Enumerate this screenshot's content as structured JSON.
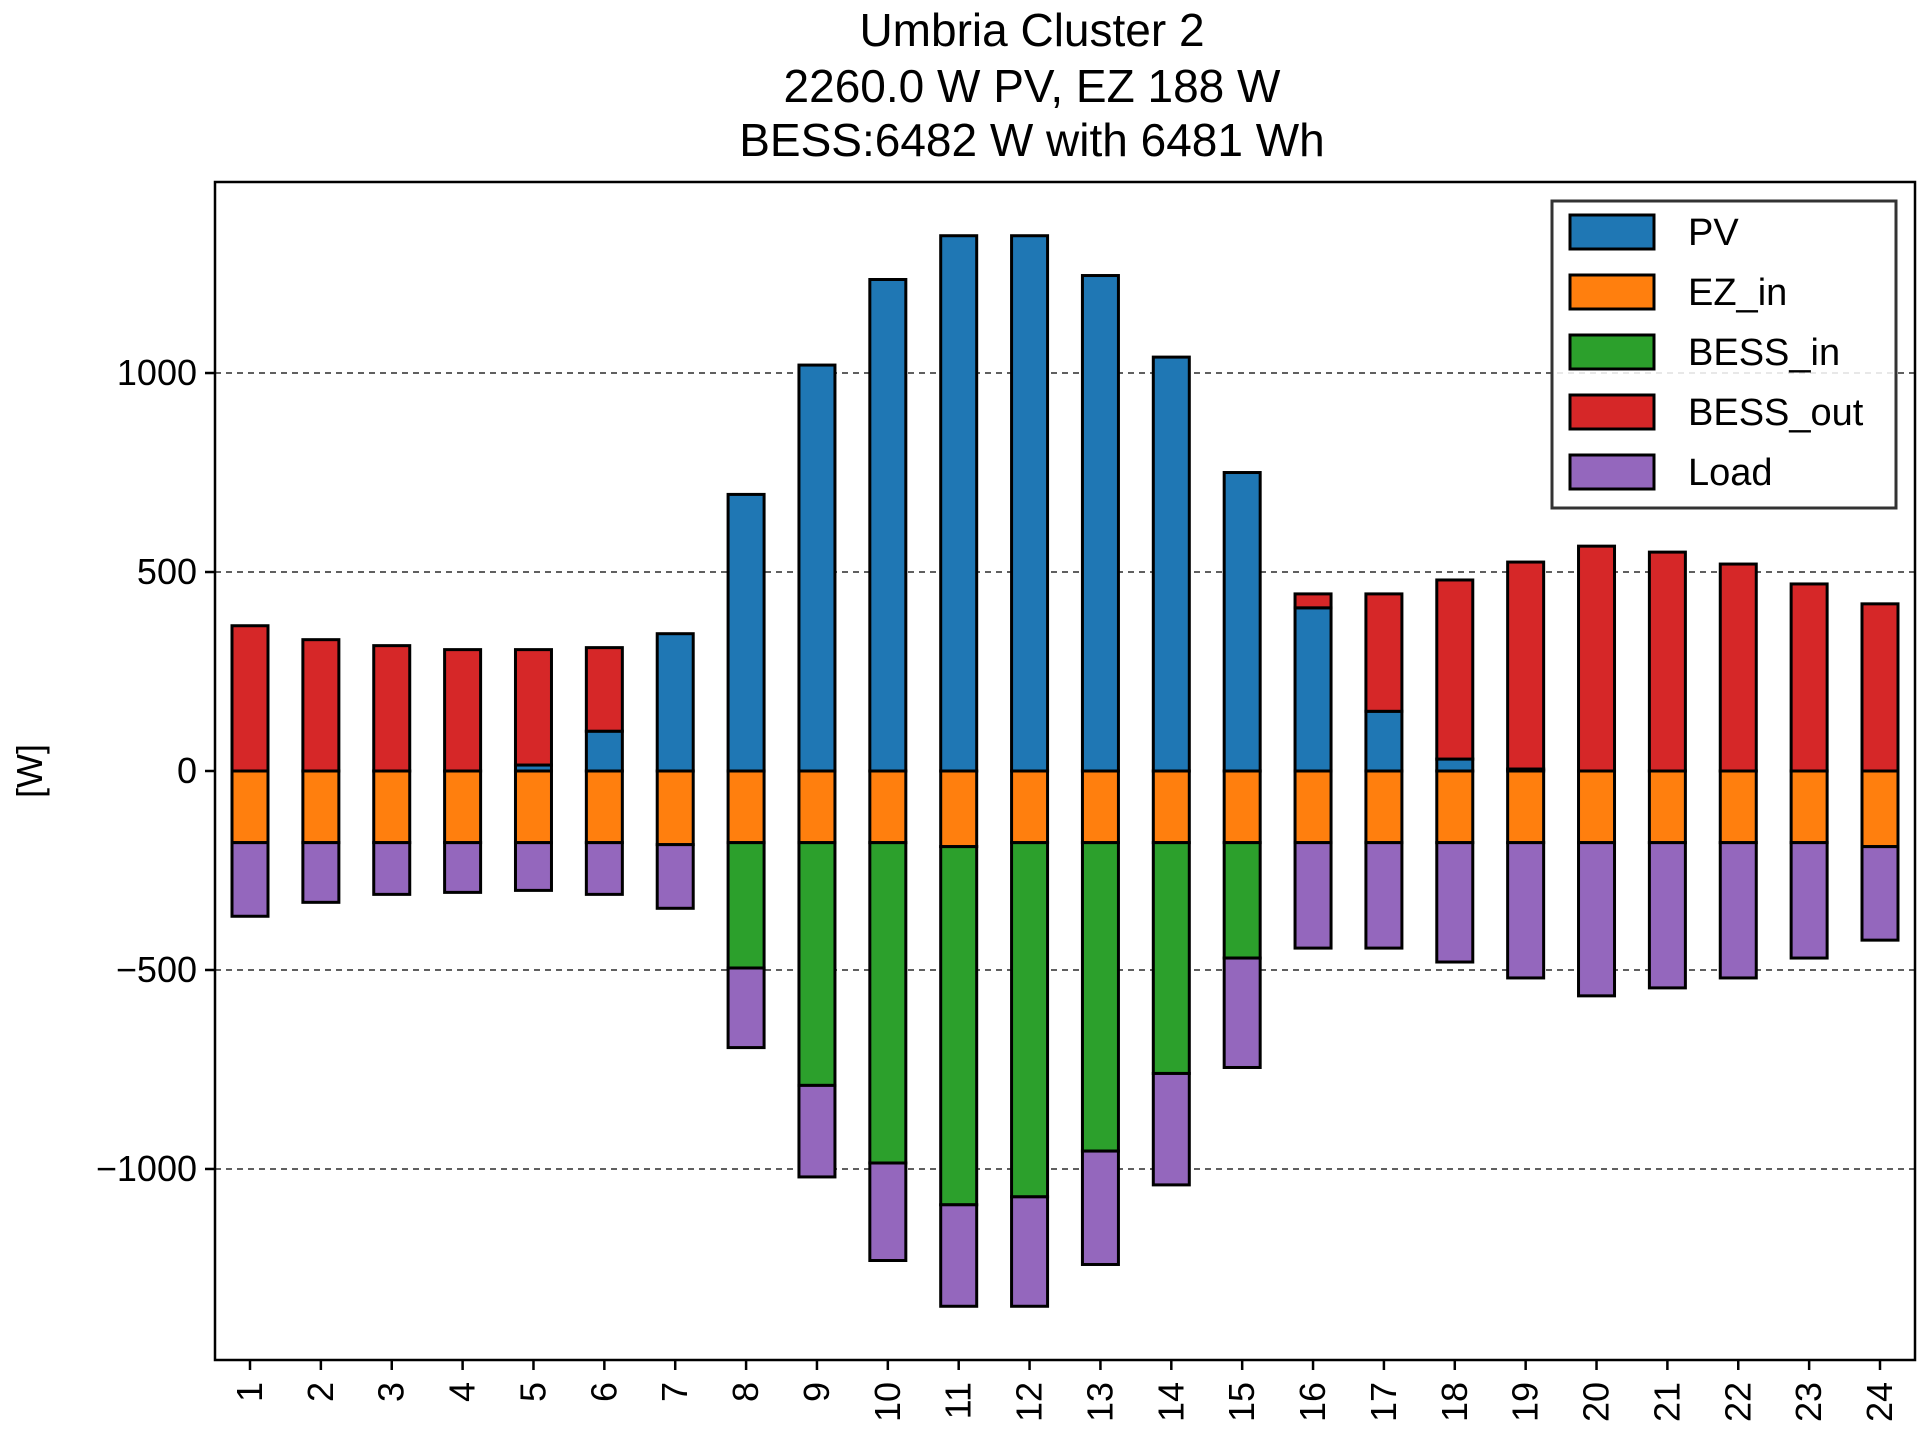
{
  "chart_data": {
    "type": "bar",
    "stacked": true,
    "title_lines": [
      "Umbria Cluster 2",
      "2260.0 W PV, EZ 188 W",
      "BESS:6482 W with 6481 Wh"
    ],
    "xlabel": "",
    "ylabel": "[W]",
    "ylim": [
      -1480,
      1480
    ],
    "yticks": [
      -1000,
      -500,
      0,
      500,
      1000
    ],
    "ytick_labels": [
      "−1000",
      "−500",
      "0",
      "500",
      "1000"
    ],
    "grid": "horizontal dashed at y ticks",
    "legend_position": "top-right",
    "categories": [
      "1",
      "2",
      "3",
      "4",
      "5",
      "6",
      "7",
      "8",
      "9",
      "10",
      "11",
      "12",
      "13",
      "14",
      "15",
      "16",
      "17",
      "18",
      "19",
      "20",
      "21",
      "22",
      "23",
      "24"
    ],
    "series": [
      {
        "name": "PV",
        "color": "#1f77b4",
        "values": [
          0,
          0,
          0,
          0,
          15,
          100,
          345,
          695,
          1020,
          1235,
          1345,
          1345,
          1245,
          1040,
          750,
          410,
          150,
          30,
          5,
          0,
          0,
          0,
          0,
          0
        ]
      },
      {
        "name": "EZ_in",
        "color": "#ff7f0e",
        "values": [
          -180,
          -180,
          -180,
          -180,
          -180,
          -180,
          -185,
          -180,
          -180,
          -180,
          -190,
          -180,
          -180,
          -180,
          -180,
          -180,
          -180,
          -180,
          -180,
          -180,
          -180,
          -180,
          -180,
          -190
        ]
      },
      {
        "name": "BESS_in",
        "color": "#2ca02c",
        "values": [
          0,
          0,
          0,
          0,
          0,
          0,
          0,
          -315,
          -610,
          -805,
          -900,
          -890,
          -775,
          -580,
          -290,
          0,
          0,
          0,
          0,
          0,
          0,
          0,
          0,
          0
        ]
      },
      {
        "name": "BESS_out",
        "color": "#d62728",
        "values": [
          365,
          330,
          315,
          305,
          290,
          210,
          0,
          0,
          0,
          0,
          0,
          0,
          0,
          0,
          0,
          35,
          295,
          450,
          520,
          565,
          550,
          520,
          470,
          420
        ]
      },
      {
        "name": "Load",
        "color": "#9467bd",
        "values": [
          -185,
          -150,
          -130,
          -125,
          -120,
          -130,
          -160,
          -200,
          -230,
          -245,
          -255,
          -275,
          -285,
          -280,
          -275,
          -265,
          -265,
          -300,
          -340,
          -385,
          -365,
          -340,
          -290,
          -235
        ]
      }
    ]
  }
}
